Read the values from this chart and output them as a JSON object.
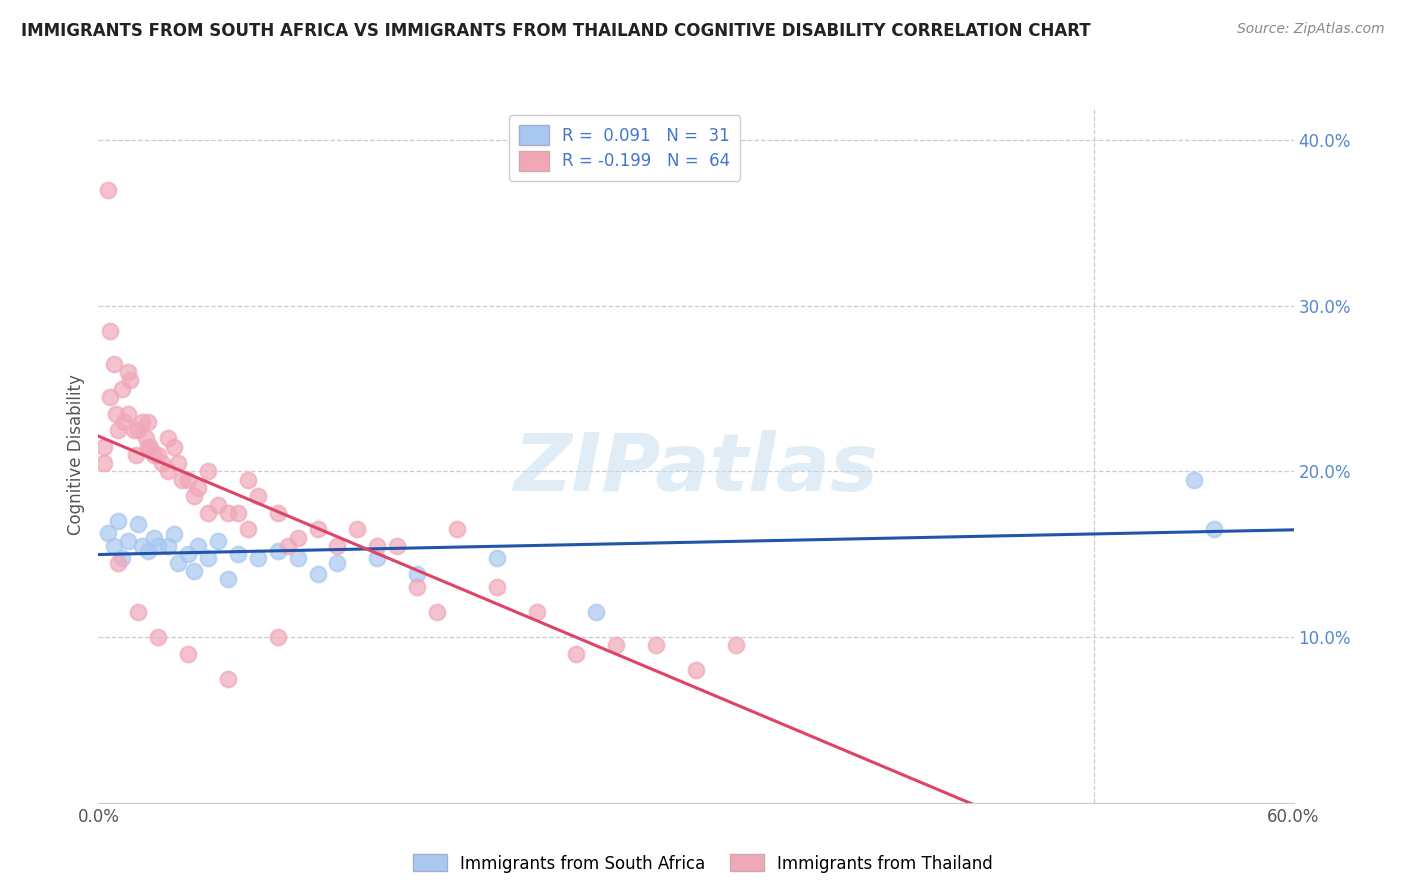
{
  "title": "IMMIGRANTS FROM SOUTH AFRICA VS IMMIGRANTS FROM THAILAND COGNITIVE DISABILITY CORRELATION CHART",
  "source": "Source: ZipAtlas.com",
  "ylabel": "Cognitive Disability",
  "xlim": [
    0.0,
    0.6
  ],
  "ylim": [
    0.0,
    0.42
  ],
  "series1_label": "Immigrants from South Africa",
  "series1_color": "#a8c8f0",
  "series1_line_color": "#2255aa",
  "series1_R": 0.091,
  "series1_N": 31,
  "series2_label": "Immigrants from Thailand",
  "series2_color": "#f0a8b8",
  "series2_line_color": "#dd4466",
  "series2_R": -0.199,
  "series2_N": 64,
  "watermark": "ZIPatlas",
  "background_color": "#ffffff",
  "grid_color": "#cccccc",
  "title_fontsize": 12,
  "source_fontsize": 10,
  "scatter1_x": [
    0.005,
    0.008,
    0.01,
    0.012,
    0.015,
    0.02,
    0.022,
    0.025,
    0.028,
    0.03,
    0.035,
    0.038,
    0.04,
    0.045,
    0.048,
    0.05,
    0.055,
    0.06,
    0.065,
    0.07,
    0.08,
    0.09,
    0.1,
    0.11,
    0.12,
    0.14,
    0.16,
    0.2,
    0.25,
    0.55,
    0.56
  ],
  "scatter1_y": [
    0.163,
    0.155,
    0.17,
    0.148,
    0.158,
    0.168,
    0.155,
    0.152,
    0.16,
    0.155,
    0.155,
    0.162,
    0.145,
    0.15,
    0.14,
    0.155,
    0.148,
    0.158,
    0.135,
    0.15,
    0.148,
    0.152,
    0.148,
    0.138,
    0.145,
    0.148,
    0.138,
    0.148,
    0.115,
    0.195,
    0.165
  ],
  "scatter2_x": [
    0.003,
    0.005,
    0.006,
    0.008,
    0.009,
    0.01,
    0.012,
    0.013,
    0.015,
    0.016,
    0.018,
    0.019,
    0.02,
    0.022,
    0.024,
    0.025,
    0.026,
    0.028,
    0.03,
    0.032,
    0.035,
    0.038,
    0.04,
    0.042,
    0.045,
    0.048,
    0.05,
    0.055,
    0.06,
    0.065,
    0.07,
    0.075,
    0.08,
    0.09,
    0.095,
    0.1,
    0.11,
    0.12,
    0.13,
    0.14,
    0.15,
    0.16,
    0.17,
    0.18,
    0.2,
    0.22,
    0.24,
    0.26,
    0.28,
    0.3,
    0.32,
    0.006,
    0.015,
    0.025,
    0.035,
    0.055,
    0.075,
    0.003,
    0.01,
    0.02,
    0.03,
    0.045,
    0.065,
    0.09
  ],
  "scatter2_y": [
    0.215,
    0.37,
    0.245,
    0.265,
    0.235,
    0.225,
    0.25,
    0.23,
    0.235,
    0.255,
    0.225,
    0.21,
    0.225,
    0.23,
    0.22,
    0.215,
    0.215,
    0.21,
    0.21,
    0.205,
    0.2,
    0.215,
    0.205,
    0.195,
    0.195,
    0.185,
    0.19,
    0.175,
    0.18,
    0.175,
    0.175,
    0.165,
    0.185,
    0.175,
    0.155,
    0.16,
    0.165,
    0.155,
    0.165,
    0.155,
    0.155,
    0.13,
    0.115,
    0.165,
    0.13,
    0.115,
    0.09,
    0.095,
    0.095,
    0.08,
    0.095,
    0.285,
    0.26,
    0.23,
    0.22,
    0.2,
    0.195,
    0.205,
    0.145,
    0.115,
    0.1,
    0.09,
    0.075,
    0.1
  ]
}
